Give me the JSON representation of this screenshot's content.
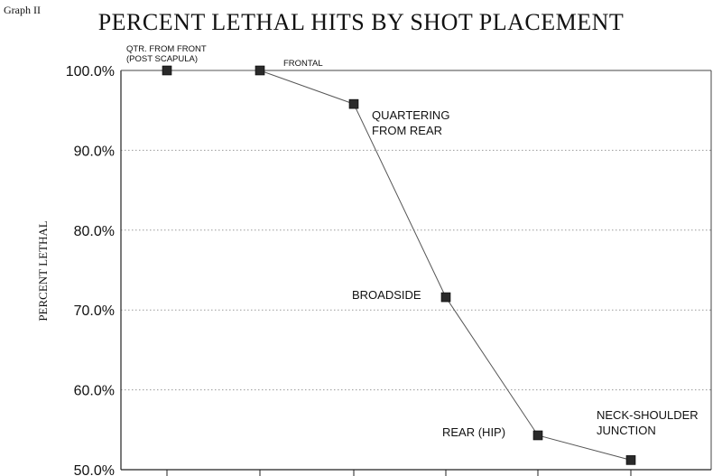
{
  "header": {
    "graph_tag": "Graph II",
    "title": "PERCENT LETHAL HITS BY SHOT PLACEMENT",
    "ylabel": "PERCENT LETHAL"
  },
  "chart_data": {
    "type": "line",
    "title": "PERCENT LETHAL HITS BY SHOT PLACEMENT",
    "xlabel": "",
    "ylabel": "PERCENT LETHAL",
    "ylim": [
      50,
      100
    ],
    "yticks": [
      "50.0%",
      "60.0%",
      "70.0%",
      "80.0%",
      "90.0%",
      "100.0%"
    ],
    "grid": "horizontal dotted",
    "series": [
      {
        "values": [
          100.0,
          100.0,
          95.8,
          71.6,
          54.3,
          51.2
        ],
        "points": [
          {
            "label": [
              "QTR. FROM FRONT",
              "(POST SCAPULA)"
            ],
            "value": 100.0
          },
          {
            "label": [
              "FRONTAL"
            ],
            "value": 100.0
          },
          {
            "label": [
              "QUARTERING",
              "FROM REAR"
            ],
            "value": 95.8
          },
          {
            "label": [
              "BROADSIDE"
            ],
            "value": 71.6
          },
          {
            "label": [
              "REAR (HIP)"
            ],
            "value": 54.3
          },
          {
            "label": [
              "NECK-SHOULDER",
              "JUNCTION"
            ],
            "value": 51.2
          }
        ]
      }
    ],
    "style": {
      "line_color": "#555555",
      "marker_color": "#2a2a2a"
    }
  }
}
